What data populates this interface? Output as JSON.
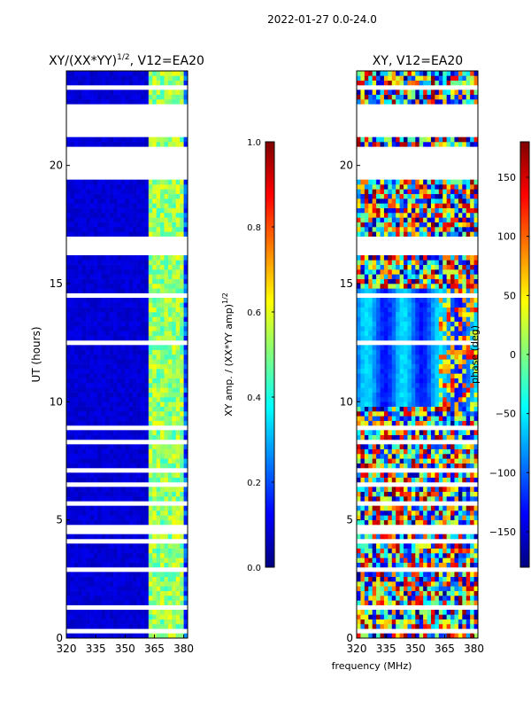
{
  "figure_title": "2022-01-27 0.0-24.0",
  "colors": {
    "jet": [
      "#00007f",
      "#0000ff",
      "#007fff",
      "#00ffff",
      "#7fff7f",
      "#ffff00",
      "#ff7f00",
      "#ff0000",
      "#7f0000"
    ],
    "gap": "#ffffff"
  },
  "chart_data": [
    {
      "type": "heatmap",
      "title": "XY/(XX*YY)^1/2, V12=EA20",
      "title_main": "XY/(XX*YY)",
      "title_sup": "1/2",
      "title_tail": ", V12=EA20",
      "xlabel": "",
      "ylabel": "UT (hours)",
      "xlim": [
        320,
        382
      ],
      "ylim": [
        0,
        24
      ],
      "xticks": [
        320,
        335,
        350,
        365,
        380
      ],
      "yticks": [
        0,
        5,
        10,
        15,
        20
      ],
      "quantity": "normalized XY amplitude",
      "description": "mostly low (~0.05-0.1) below 362 MHz; bright vertical stripes (~0.4-0.6) between 362 and 382 MHz",
      "colorbar": {
        "label": "XY amp. / (XX*YY amp)^1/2",
        "label_main": "XY amp. / (XX*YY amp)",
        "label_sup": "1/2",
        "range": [
          0.0,
          1.0
        ],
        "ticks": [
          0.0,
          0.2,
          0.4,
          0.6,
          0.8,
          1.0
        ],
        "tick_labels": [
          "0.0",
          "0.2",
          "0.4",
          "0.6",
          "0.8",
          "1.0"
        ]
      }
    },
    {
      "type": "heatmap",
      "title": "XY, V12=EA20",
      "xlabel": "frequency (MHz)",
      "ylabel": "",
      "xlim": [
        320,
        382
      ],
      "ylim": [
        0,
        24
      ],
      "xticks": [
        320,
        335,
        350,
        365,
        380
      ],
      "yticks": [
        0,
        5,
        10,
        15,
        20
      ],
      "quantity": "XY phase (deg)",
      "description": "noisy phase at most times; smooth phase near -80 deg between 9.8 and 14.8 hours",
      "colorbar": {
        "label": "phase (deg)",
        "range": [
          -180,
          180
        ],
        "ticks": [
          -150,
          -100,
          -50,
          0,
          50,
          100,
          150
        ],
        "tick_labels": [
          "−150",
          "−100",
          "−50",
          "0",
          "50",
          "100",
          "150"
        ]
      }
    }
  ],
  "gaps_hours": [
    [
      0.3,
      0.5
    ],
    [
      1.3,
      1.5
    ],
    [
      1.8,
      1.9
    ],
    [
      2.9,
      3.0
    ],
    [
      4.1,
      4.2
    ],
    [
      4.5,
      4.8
    ],
    [
      5.7,
      5.75
    ],
    [
      6.5,
      6.6
    ],
    [
      7.1,
      7.15
    ],
    [
      8.2,
      8.4
    ],
    [
      8.9,
      9.0
    ],
    [
      9.5,
      9.6
    ],
    [
      9.9,
      10.0
    ],
    [
      11.5,
      11.6
    ],
    [
      12.4,
      12.5
    ],
    [
      13.3,
      13.4
    ],
    [
      14.4,
      14.5
    ],
    [
      15.3,
      15.35
    ],
    [
      16.2,
      17.0
    ],
    [
      17.5,
      17.6
    ],
    [
      18.3,
      18.4
    ],
    [
      19.3,
      20.7
    ],
    [
      21.2,
      22.6
    ],
    [
      23.1,
      23.3
    ],
    [
      23.7,
      23.8
    ]
  ]
}
